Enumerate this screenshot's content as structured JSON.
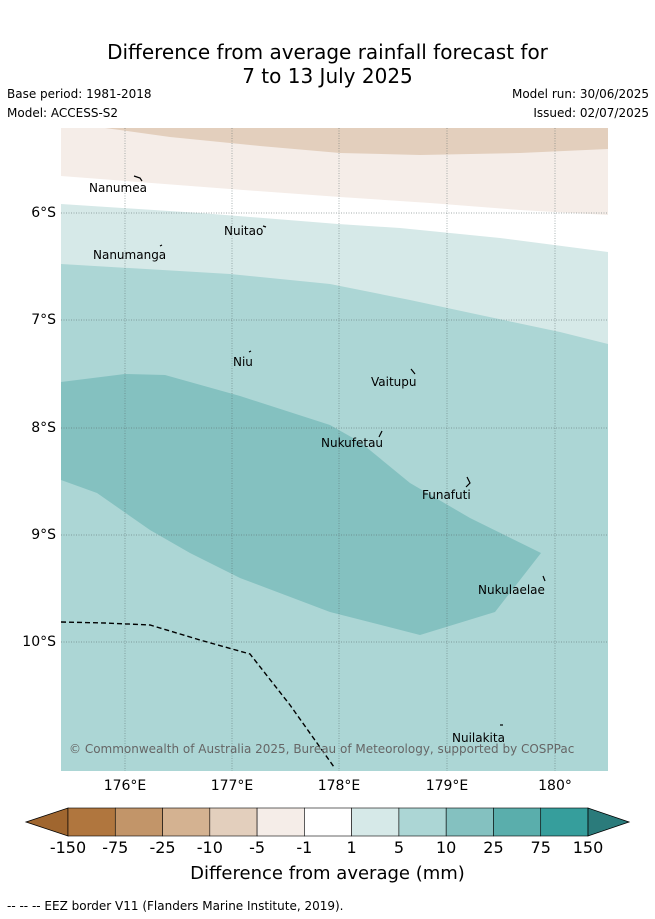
{
  "title_line1": "Difference from average rainfall forecast for",
  "title_line2": "7 to 13 July 2025",
  "base_period": "Base period: 1981-2018",
  "model": "Model: ACCESS-S2",
  "model_run": "Model run: 30/06/2025",
  "issued": "Issued: 02/07/2025",
  "lat_labels": [
    "6°S",
    "7°S",
    "8°S",
    "9°S",
    "10°S"
  ],
  "lon_labels": [
    "176°E",
    "177°E",
    "178°E",
    "179°E",
    "180°"
  ],
  "places": {
    "nanumea": "Nanumea",
    "nuitao": "Nuitao",
    "nanumanga": "Nanumanga",
    "niu": "Niu",
    "vaitupu": "Vaitupu",
    "nukufetau": "Nukufetau",
    "funafuti": "Funafuti",
    "nukulaelae": "Nukulaelae",
    "nuilakita": "Nuilakita"
  },
  "copyright": "© Commonwealth of Australia 2025, Bureau of Meteorology, supported by COSPPac",
  "colorbar": {
    "ticks": [
      "-150",
      "-75",
      "-25",
      "-10",
      "-5",
      "-1",
      "1",
      "5",
      "10",
      "25",
      "75",
      "150"
    ],
    "colors": [
      "#a0662f",
      "#b0763e",
      "#c29569",
      "#d4b291",
      "#e3cfbd",
      "#f5ede8",
      "#ffffff",
      "#d6e9e8",
      "#acd6d5",
      "#84c1c0",
      "#5aaeac",
      "#369e9c",
      "#2b7b7b"
    ],
    "label": "Difference from average (mm)"
  },
  "footer": "--  --  -- EEZ border V11 (Flanders Marine Institute, 2019)."
}
